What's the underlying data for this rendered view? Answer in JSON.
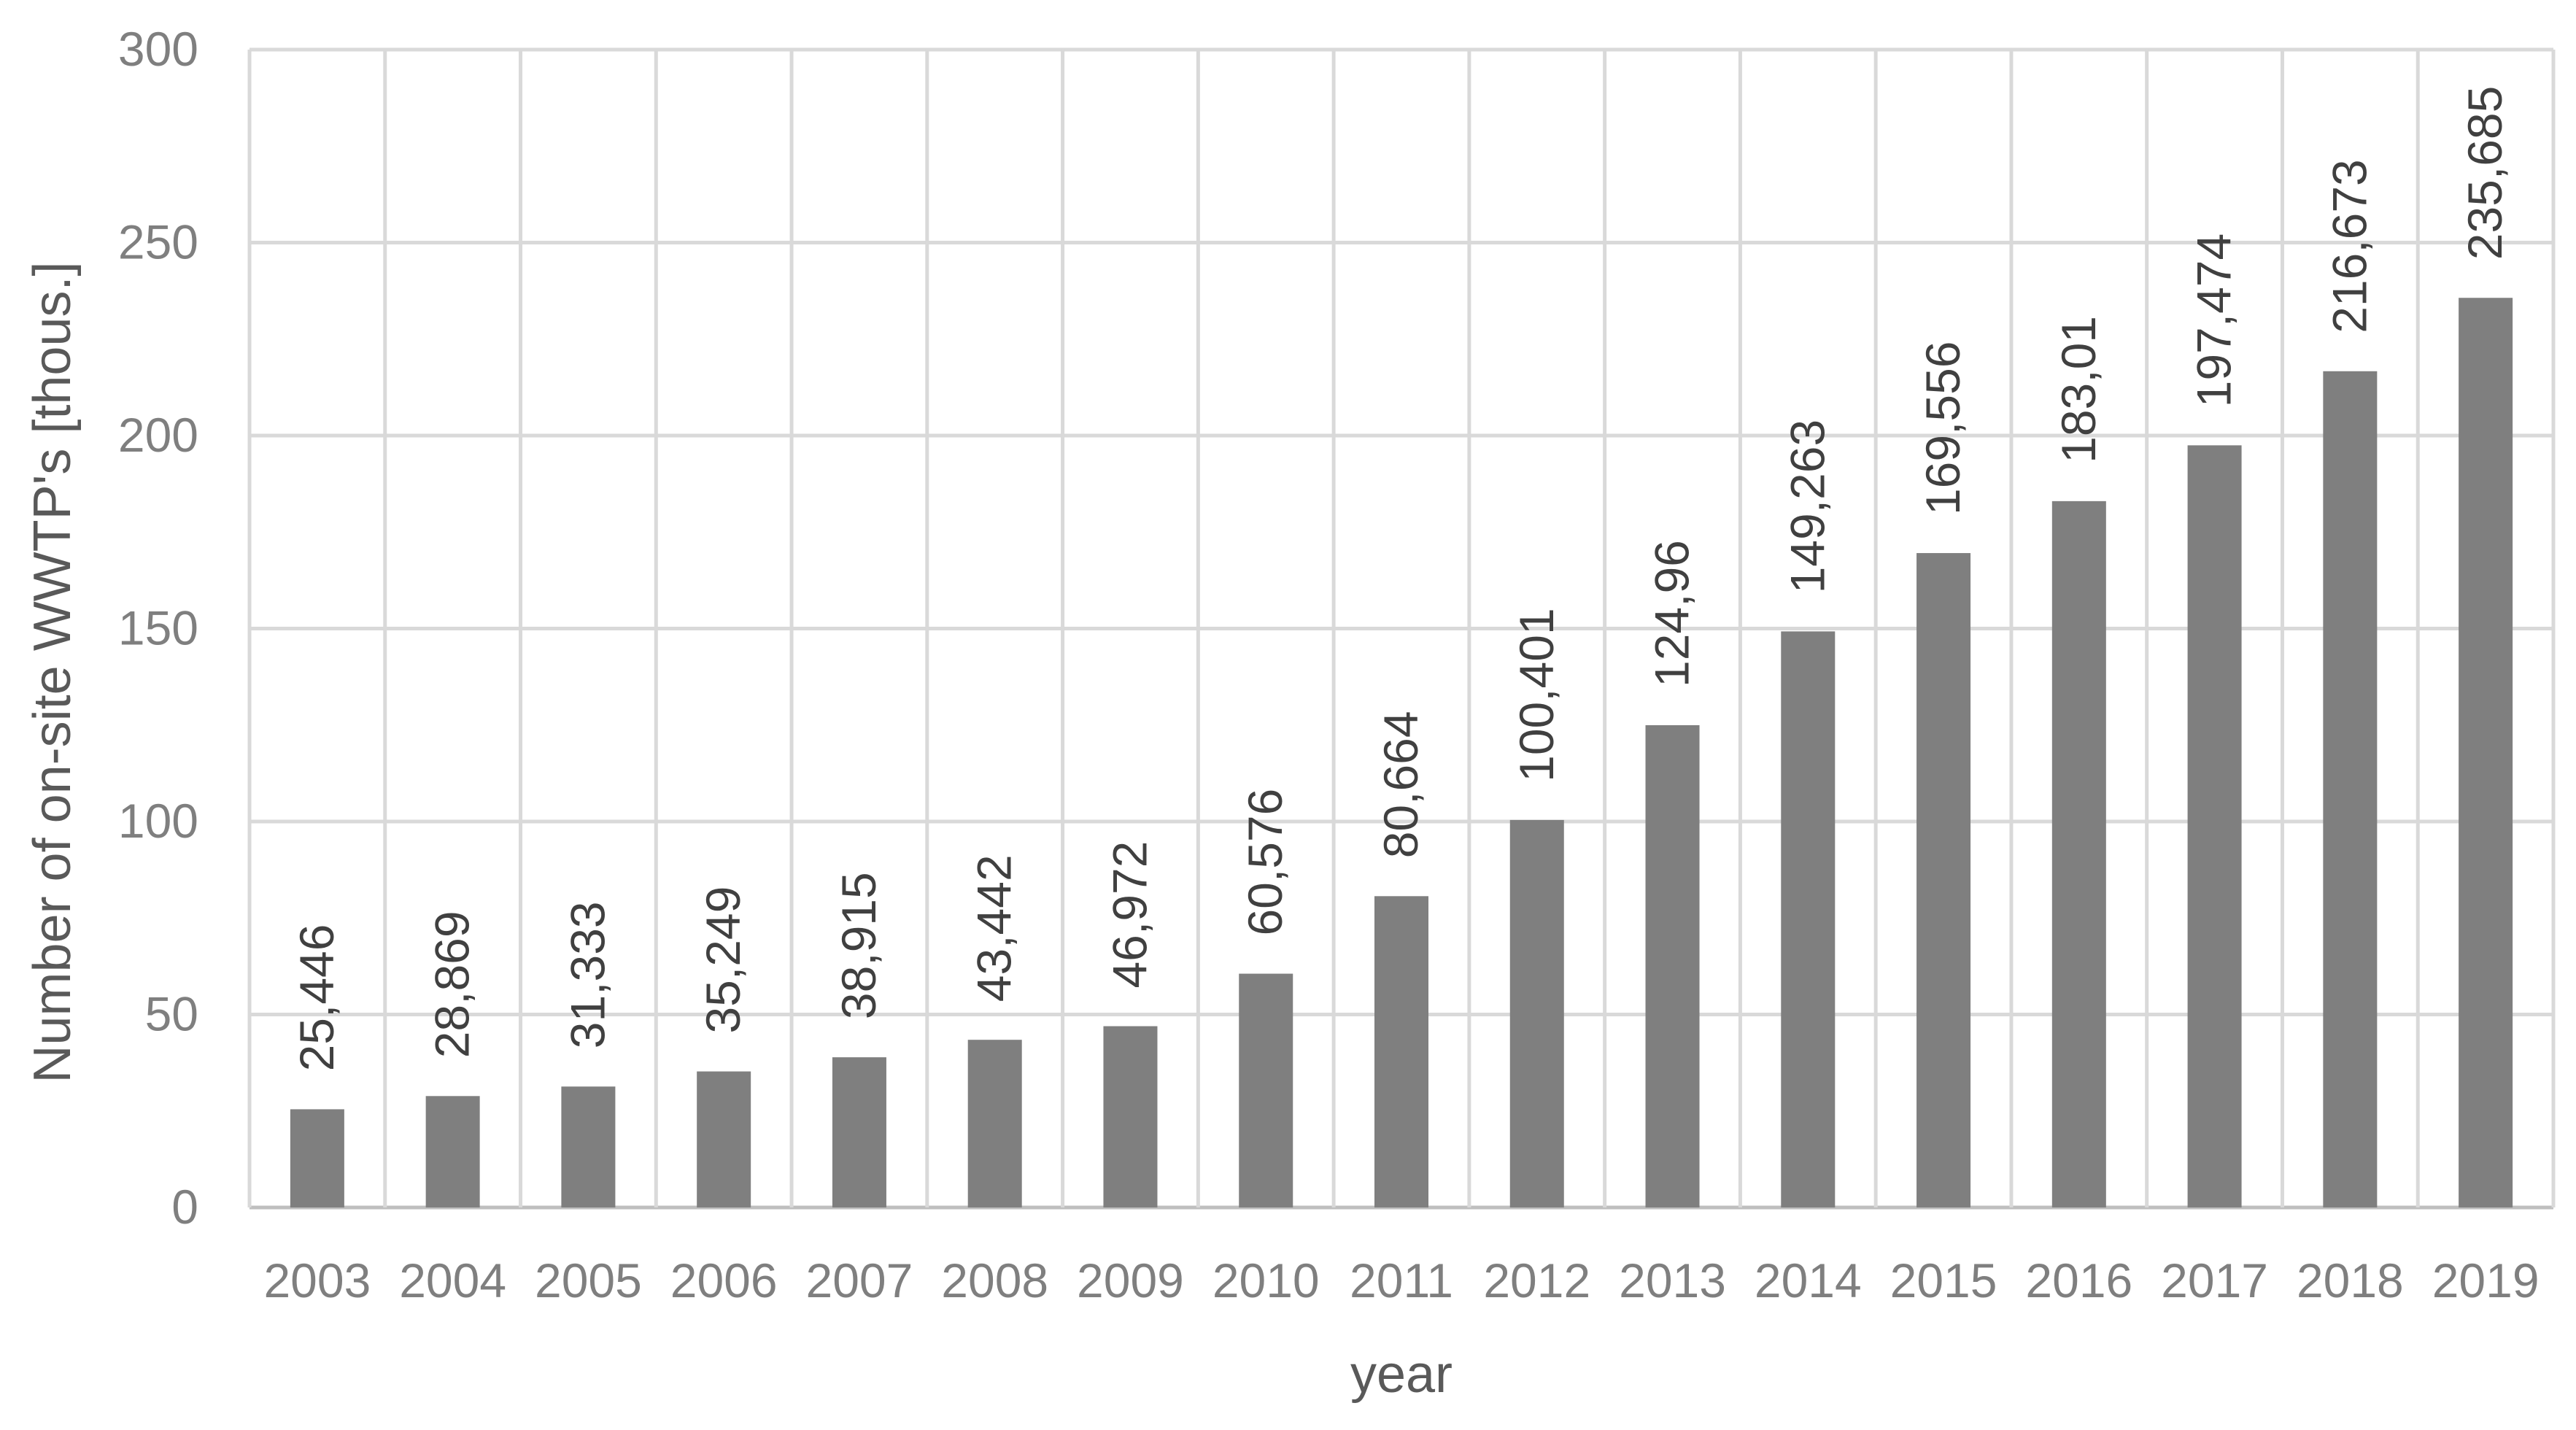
{
  "chart_data": {
    "type": "bar",
    "title": "",
    "xlabel": "year",
    "ylabel": "Number of on-site WWTP's [thous.]",
    "categories": [
      "2003",
      "2004",
      "2005",
      "2006",
      "2007",
      "2008",
      "2009",
      "2010",
      "2011",
      "2012",
      "2013",
      "2014",
      "2015",
      "2016",
      "2017",
      "2018",
      "2019"
    ],
    "values": [
      25.446,
      28.869,
      31.333,
      35.249,
      38.915,
      43.442,
      46.972,
      60.576,
      80.664,
      100.401,
      124.96,
      149.263,
      169.556,
      183.01,
      197.474,
      216.673,
      235.685
    ],
    "data_labels": [
      "25,446",
      "28,869",
      "31,333",
      "35,249",
      "38,915",
      "43,442",
      "46,972",
      "60,576",
      "80,664",
      "100,401",
      "124,96",
      "149,263",
      "169,556",
      "183,01",
      "197,474",
      "216,673",
      "235,685"
    ],
    "y_ticks": [
      "0",
      "50",
      "100",
      "150",
      "200",
      "250",
      "300"
    ],
    "ylim": [
      0,
      300
    ],
    "grid": true,
    "legend": "none",
    "colors": {
      "bar": "#7f7f7f",
      "grid": "#d9d9d9",
      "axis": "#bfbfbf",
      "tick_text": "#7f7f7f",
      "label_text": "#404040",
      "title_text": "#595959"
    }
  }
}
